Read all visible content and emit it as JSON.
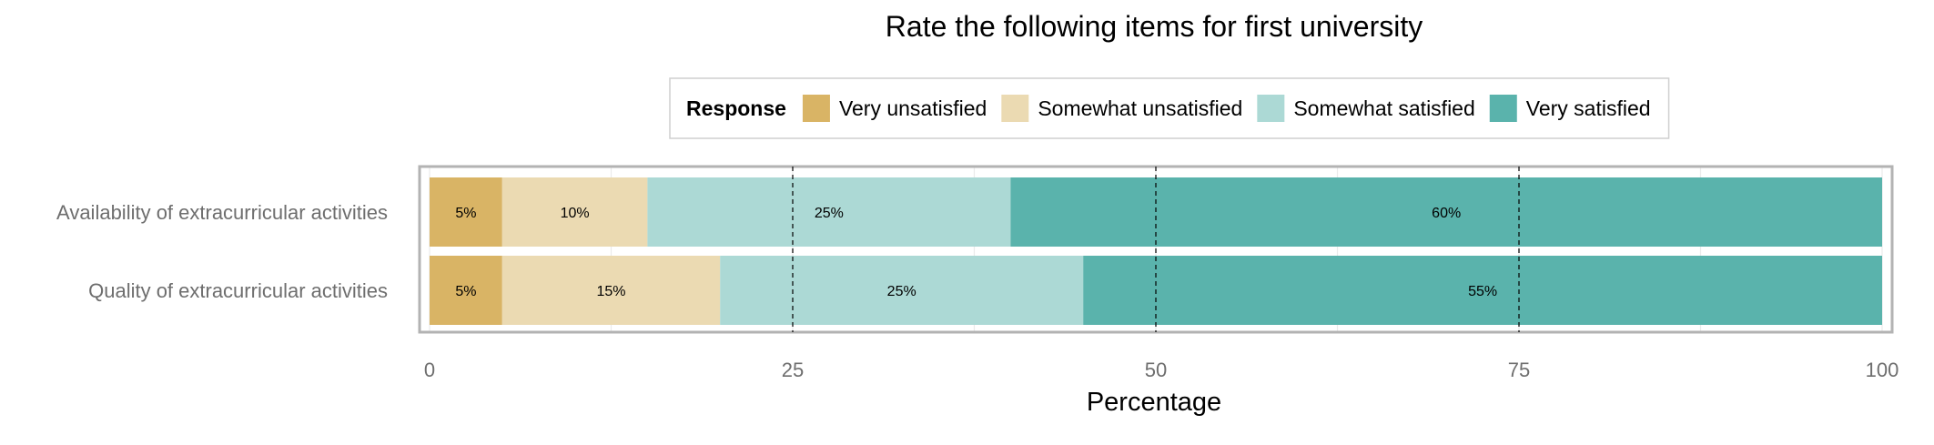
{
  "chart_data": {
    "type": "bar",
    "orientation": "horizontal",
    "stacked": true,
    "title": "Rate the following items for first university",
    "xlabel": "Percentage",
    "ylabel": "",
    "xlim": [
      0,
      100
    ],
    "xticks": [
      0,
      25,
      50,
      75,
      100
    ],
    "categories": [
      "Availability of extracurricular activities",
      "Quality of extracurricular activities"
    ],
    "legend": {
      "title": "Response",
      "position": "top"
    },
    "series": [
      {
        "name": "Very unsatisfied",
        "color": "#d9b465",
        "values": [
          5,
          5
        ],
        "labels": [
          "5%",
          "5%"
        ]
      },
      {
        "name": "Somewhat unsatisfied",
        "color": "#ebdab2",
        "values": [
          10,
          15
        ],
        "labels": [
          "10%",
          "15%"
        ]
      },
      {
        "name": "Somewhat satisfied",
        "color": "#acd9d5",
        "values": [
          25,
          25
        ],
        "labels": [
          "25%",
          "25%"
        ]
      },
      {
        "name": "Very satisfied",
        "color": "#5ab3ac",
        "values": [
          60,
          55
        ],
        "labels": [
          "60%",
          "55%"
        ]
      }
    ],
    "reference_lines": [
      25,
      50,
      75
    ],
    "grid": true
  }
}
